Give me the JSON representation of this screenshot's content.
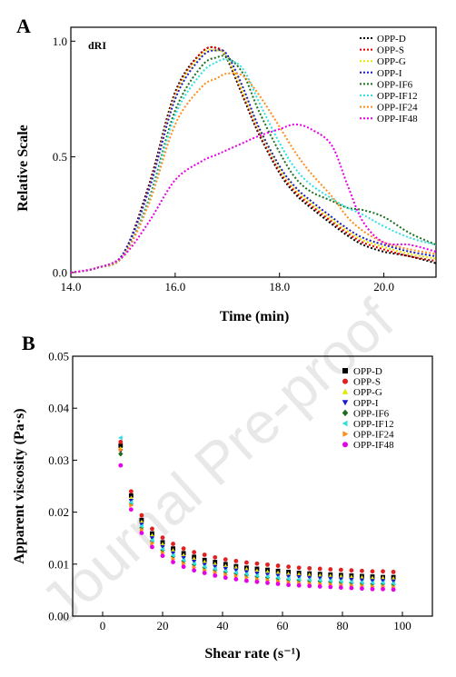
{
  "watermark": "Journal Pre-proof",
  "chart_data": [
    {
      "type": "line",
      "panel_label": "A",
      "annotation": "dRI",
      "xlabel": "Time (min)",
      "ylabel": "Relative Scale",
      "xlim": [
        14.0,
        21.0
      ],
      "ylim": [
        -0.02,
        1.06
      ],
      "x_ticks": [
        14.0,
        16.0,
        18.0,
        20.0
      ],
      "x_tick_labels": [
        "14.0",
        "16.0",
        "18.0",
        "20.0"
      ],
      "y_ticks": [
        0.0,
        0.5,
        1.0
      ],
      "y_tick_labels": [
        "0.0",
        "0.5",
        "1.0"
      ],
      "grid": false,
      "legend_position": "top-right",
      "line_style": "dotted",
      "x": [
        14.0,
        14.5,
        15.0,
        15.5,
        16.0,
        16.5,
        16.8,
        17.0,
        17.3,
        17.6,
        18.0,
        18.3,
        18.6,
        19.0,
        19.3,
        19.6,
        20.0,
        20.5,
        21.0
      ],
      "series": [
        {
          "name": "OPP-D",
          "color": "#000000",
          "values": [
            0.0,
            0.02,
            0.08,
            0.38,
            0.78,
            0.95,
            0.97,
            0.92,
            0.76,
            0.6,
            0.43,
            0.34,
            0.28,
            0.21,
            0.16,
            0.12,
            0.09,
            0.07,
            0.04
          ]
        },
        {
          "name": "OPP-S",
          "color": "#e00000",
          "values": [
            0.0,
            0.02,
            0.08,
            0.37,
            0.77,
            0.95,
            0.97,
            0.93,
            0.77,
            0.61,
            0.44,
            0.35,
            0.29,
            0.22,
            0.17,
            0.13,
            0.1,
            0.07,
            0.05
          ]
        },
        {
          "name": "OPP-G",
          "color": "#e6e600",
          "values": [
            0.0,
            0.02,
            0.08,
            0.36,
            0.76,
            0.94,
            0.96,
            0.93,
            0.78,
            0.62,
            0.45,
            0.36,
            0.3,
            0.23,
            0.18,
            0.14,
            0.11,
            0.08,
            0.06
          ]
        },
        {
          "name": "OPP-I",
          "color": "#1a1acc",
          "values": [
            0.0,
            0.02,
            0.08,
            0.36,
            0.75,
            0.93,
            0.96,
            0.94,
            0.8,
            0.63,
            0.46,
            0.37,
            0.31,
            0.24,
            0.19,
            0.15,
            0.12,
            0.09,
            0.07
          ]
        },
        {
          "name": "OPP-IF6",
          "color": "#1e6e1e",
          "values": [
            0.0,
            0.02,
            0.07,
            0.32,
            0.7,
            0.89,
            0.93,
            0.93,
            0.86,
            0.7,
            0.52,
            0.41,
            0.35,
            0.31,
            0.28,
            0.27,
            0.24,
            0.17,
            0.12
          ]
        },
        {
          "name": "OPP-IF12",
          "color": "#33e0e0",
          "values": [
            0.0,
            0.02,
            0.07,
            0.31,
            0.68,
            0.86,
            0.91,
            0.92,
            0.88,
            0.74,
            0.56,
            0.45,
            0.38,
            0.32,
            0.28,
            0.25,
            0.2,
            0.15,
            0.12
          ]
        },
        {
          "name": "OPP-IF24",
          "color": "#ff8c1a",
          "values": [
            0.0,
            0.02,
            0.07,
            0.3,
            0.64,
            0.8,
            0.84,
            0.86,
            0.85,
            0.77,
            0.63,
            0.52,
            0.43,
            0.33,
            0.24,
            0.18,
            0.13,
            0.1,
            0.08
          ]
        },
        {
          "name": "OPP-IF48",
          "color": "#e600e6",
          "values": [
            0.0,
            0.02,
            0.07,
            0.22,
            0.4,
            0.48,
            0.51,
            0.53,
            0.56,
            0.59,
            0.62,
            0.64,
            0.62,
            0.55,
            0.38,
            0.22,
            0.13,
            0.12,
            0.09
          ]
        }
      ]
    },
    {
      "type": "scatter",
      "panel_label": "B",
      "xlabel": "Shear rate (s⁻¹)",
      "ylabel": "Apparent viscosity (Pa·s)",
      "xlim": [
        -10,
        110
      ],
      "ylim": [
        0.0,
        0.05
      ],
      "x_ticks": [
        0,
        20,
        40,
        60,
        80,
        100
      ],
      "x_tick_labels": [
        "0",
        "20",
        "40",
        "60",
        "80",
        "100"
      ],
      "y_ticks": [
        0.0,
        0.01,
        0.02,
        0.03,
        0.04,
        0.05
      ],
      "y_tick_labels": [
        "0.00",
        "0.01",
        "0.02",
        "0.03",
        "0.04",
        "0.05"
      ],
      "grid": false,
      "legend_position": "top-right",
      "x": [
        6,
        9.5,
        13,
        16.5,
        20,
        23.5,
        27,
        30.5,
        34,
        37.5,
        41,
        44.5,
        48,
        51.5,
        55,
        58.5,
        62,
        65.5,
        69,
        72.5,
        76,
        79.5,
        83,
        86.5,
        90,
        93.5,
        97
      ],
      "series": [
        {
          "name": "OPP-D",
          "color": "#000000",
          "marker": "square",
          "values": [
            0.0328,
            0.0232,
            0.0185,
            0.0159,
            0.0142,
            0.013,
            0.0121,
            0.0114,
            0.0108,
            0.0104,
            0.01,
            0.0096,
            0.0093,
            0.0091,
            0.0089,
            0.0087,
            0.0085,
            0.0083,
            0.0082,
            0.0081,
            0.008,
            0.0079,
            0.0078,
            0.0077,
            0.0076,
            0.0075,
            0.0075
          ]
        },
        {
          "name": "OPP-S",
          "color": "#e02020",
          "marker": "circle",
          "values": [
            0.0335,
            0.024,
            0.0194,
            0.0168,
            0.0151,
            0.0139,
            0.013,
            0.0123,
            0.0118,
            0.0113,
            0.0109,
            0.0106,
            0.0103,
            0.0101,
            0.0099,
            0.0097,
            0.0095,
            0.0093,
            0.0092,
            0.0091,
            0.009,
            0.0089,
            0.0088,
            0.0087,
            0.0086,
            0.0086,
            0.0085
          ]
        },
        {
          "name": "OPP-G",
          "color": "#e6e600",
          "marker": "triangle-up",
          "values": [
            0.0322,
            0.0227,
            0.0181,
            0.0155,
            0.0138,
            0.0126,
            0.0117,
            0.011,
            0.0104,
            0.01,
            0.0096,
            0.0093,
            0.009,
            0.0087,
            0.0085,
            0.0083,
            0.0081,
            0.008,
            0.0079,
            0.0078,
            0.0077,
            0.0076,
            0.0075,
            0.0074,
            0.0073,
            0.0073,
            0.0072
          ]
        },
        {
          "name": "OPP-I",
          "color": "#1a1acc",
          "marker": "triangle-down",
          "values": [
            0.0318,
            0.0222,
            0.0176,
            0.015,
            0.0133,
            0.0121,
            0.0112,
            0.0105,
            0.0099,
            0.0095,
            0.0091,
            0.0088,
            0.0085,
            0.0082,
            0.008,
            0.0078,
            0.0076,
            0.0075,
            0.0074,
            0.0073,
            0.0072,
            0.0071,
            0.007,
            0.0069,
            0.0068,
            0.0068,
            0.0067
          ]
        },
        {
          "name": "OPP-IF6",
          "color": "#1e6e1e",
          "marker": "diamond",
          "values": [
            0.0312,
            0.0216,
            0.017,
            0.0144,
            0.0127,
            0.0115,
            0.0106,
            0.0099,
            0.0093,
            0.0089,
            0.0085,
            0.0082,
            0.0079,
            0.0076,
            0.0074,
            0.0072,
            0.007,
            0.0069,
            0.0068,
            0.0067,
            0.0066,
            0.0065,
            0.0064,
            0.0063,
            0.0062,
            0.0062,
            0.0061
          ]
        },
        {
          "name": "OPP-IF12",
          "color": "#33e0e0",
          "marker": "triangle-left",
          "values": [
            0.0343,
            0.0219,
            0.0173,
            0.0146,
            0.0129,
            0.0117,
            0.0108,
            0.0101,
            0.0095,
            0.0091,
            0.0087,
            0.0084,
            0.0081,
            0.0078,
            0.0076,
            0.0074,
            0.0072,
            0.0071,
            0.007,
            0.0069,
            0.0068,
            0.0067,
            0.0066,
            0.0065,
            0.0064,
            0.0064,
            0.0063
          ]
        },
        {
          "name": "OPP-IF24",
          "color": "#ff8c1a",
          "marker": "triangle-right",
          "values": [
            0.032,
            0.0213,
            0.0166,
            0.014,
            0.0122,
            0.011,
            0.0101,
            0.0094,
            0.0088,
            0.0084,
            0.008,
            0.0077,
            0.0074,
            0.0071,
            0.0069,
            0.0067,
            0.0065,
            0.0064,
            0.0063,
            0.0062,
            0.0061,
            0.006,
            0.0059,
            0.0058,
            0.0057,
            0.0057,
            0.0056
          ]
        },
        {
          "name": "OPP-IF48",
          "color": "#e600e6",
          "marker": "circle",
          "values": [
            0.029,
            0.0205,
            0.016,
            0.0133,
            0.0116,
            0.0104,
            0.0095,
            0.0088,
            0.0083,
            0.0078,
            0.0074,
            0.0071,
            0.0068,
            0.0066,
            0.0064,
            0.0062,
            0.006,
            0.0059,
            0.0058,
            0.0057,
            0.0056,
            0.0055,
            0.0054,
            0.0053,
            0.0052,
            0.0052,
            0.0051
          ]
        }
      ]
    }
  ]
}
